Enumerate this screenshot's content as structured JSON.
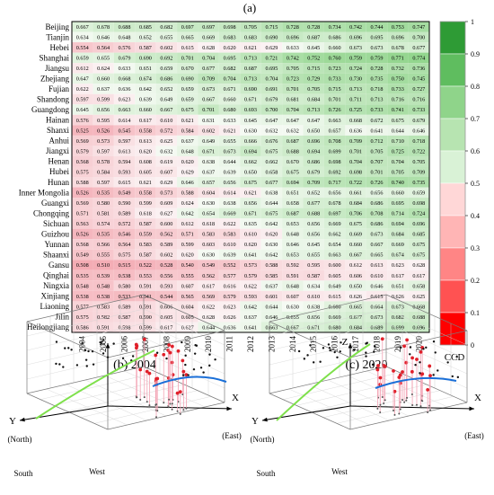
{
  "panels": {
    "a_label": "(a)",
    "b_label": "(b) 2004",
    "c_label": "(c) 2020"
  },
  "chart_data": [
    {
      "type": "heatmap",
      "title": "(a)",
      "years": [
        "2004",
        "2005",
        "2006",
        "2007",
        "2008",
        "2009",
        "2010",
        "2011",
        "2012",
        "2013",
        "2014",
        "2015",
        "2016",
        "2017",
        "2018",
        "2019",
        "2020"
      ],
      "provinces": [
        "Beijing",
        "Tianjin",
        "Hebei",
        "Shanghai",
        "Jiangsu",
        "Zhejiang",
        "Fujian",
        "Shandong",
        "Guangdong",
        "Hainan",
        "Shanxi",
        "Anhui",
        "Jiangxi",
        "Henan",
        "Hubei",
        "Hunan",
        "Inner Mongolia",
        "Guangxi",
        "Chongqing",
        "Sichuan",
        "Guizhou",
        "Yunnan",
        "Shaanxi",
        "Gansu",
        "Qinghai",
        "Ningxia",
        "Xinjiang",
        "Liaoning",
        "Jilin",
        "Heilongjiang"
      ],
      "values": [
        [
          0.667,
          0.678,
          0.688,
          0.685,
          0.682,
          0.697,
          0.697,
          0.698,
          0.705,
          0.715,
          0.728,
          0.728,
          0.734,
          0.742,
          0.744,
          0.753,
          0.747
        ],
        [
          0.634,
          0.646,
          0.648,
          0.652,
          0.655,
          0.665,
          0.669,
          0.683,
          0.683,
          0.69,
          0.696,
          0.687,
          0.686,
          0.696,
          0.695,
          0.696,
          0.7
        ],
        [
          0.554,
          0.564,
          0.576,
          0.587,
          0.602,
          0.615,
          0.628,
          0.62,
          0.621,
          0.629,
          0.633,
          0.645,
          0.66,
          0.673,
          0.673,
          0.678,
          0.677
        ],
        [
          0.659,
          0.655,
          0.679,
          0.69,
          0.692,
          0.701,
          0.704,
          0.695,
          0.713,
          0.721,
          0.742,
          0.752,
          0.76,
          0.759,
          0.759,
          0.771,
          0.774
        ],
        [
          0.612,
          0.624,
          0.633,
          0.651,
          0.659,
          0.67,
          0.677,
          0.682,
          0.687,
          0.695,
          0.705,
          0.715,
          0.723,
          0.724,
          0.728,
          0.732,
          0.736
        ],
        [
          0.647,
          0.66,
          0.668,
          0.674,
          0.686,
          0.69,
          0.709,
          0.704,
          0.713,
          0.704,
          0.723,
          0.729,
          0.733,
          0.73,
          0.735,
          0.75,
          0.745
        ],
        [
          0.622,
          0.637,
          0.636,
          0.642,
          0.652,
          0.659,
          0.673,
          0.671,
          0.69,
          0.691,
          0.701,
          0.705,
          0.715,
          0.713,
          0.718,
          0.733,
          0.727
        ],
        [
          0.597,
          0.599,
          0.623,
          0.639,
          0.649,
          0.659,
          0.667,
          0.66,
          0.671,
          0.679,
          0.681,
          0.684,
          0.701,
          0.711,
          0.713,
          0.716,
          0.716
        ],
        [
          0.645,
          0.656,
          0.663,
          0.66,
          0.667,
          0.675,
          0.701,
          0.68,
          0.693,
          0.7,
          0.704,
          0.713,
          0.726,
          0.725,
          0.733,
          0.741,
          0.733
        ],
        [
          0.576,
          0.595,
          0.614,
          0.617,
          0.61,
          0.621,
          0.631,
          0.633,
          0.645,
          0.647,
          0.647,
          0.647,
          0.663,
          0.668,
          0.672,
          0.675,
          0.679
        ],
        [
          0.525,
          0.526,
          0.545,
          0.558,
          0.572,
          0.584,
          0.602,
          0.621,
          0.63,
          0.632,
          0.632,
          0.65,
          0.657,
          0.636,
          0.641,
          0.644,
          0.646
        ],
        [
          0.569,
          0.573,
          0.597,
          0.613,
          0.625,
          0.637,
          0.649,
          0.655,
          0.666,
          0.676,
          0.687,
          0.696,
          0.708,
          0.709,
          0.712,
          0.71,
          0.718
        ],
        [
          0.579,
          0.597,
          0.613,
          0.62,
          0.632,
          0.648,
          0.671,
          0.673,
          0.694,
          0.675,
          0.688,
          0.694,
          0.699,
          0.701,
          0.705,
          0.725,
          0.722
        ],
        [
          0.568,
          0.578,
          0.594,
          0.608,
          0.619,
          0.62,
          0.638,
          0.644,
          0.662,
          0.662,
          0.67,
          0.686,
          0.698,
          0.704,
          0.707,
          0.704,
          0.705
        ],
        [
          0.575,
          0.584,
          0.593,
          0.605,
          0.607,
          0.629,
          0.637,
          0.639,
          0.65,
          0.658,
          0.675,
          0.679,
          0.692,
          0.698,
          0.701,
          0.705,
          0.709
        ],
        [
          0.588,
          0.597,
          0.615,
          0.621,
          0.629,
          0.646,
          0.657,
          0.656,
          0.675,
          0.677,
          0.694,
          0.709,
          0.717,
          0.722,
          0.726,
          0.74,
          0.735
        ],
        [
          0.526,
          0.535,
          0.549,
          0.558,
          0.573,
          0.588,
          0.604,
          0.614,
          0.621,
          0.638,
          0.651,
          0.652,
          0.656,
          0.661,
          0.656,
          0.66,
          0.659
        ],
        [
          0.569,
          0.58,
          0.59,
          0.599,
          0.609,
          0.624,
          0.63,
          0.638,
          0.656,
          0.644,
          0.658,
          0.677,
          0.678,
          0.684,
          0.686,
          0.695,
          0.698
        ],
        [
          0.571,
          0.581,
          0.589,
          0.618,
          0.627,
          0.642,
          0.654,
          0.669,
          0.671,
          0.675,
          0.687,
          0.688,
          0.697,
          0.706,
          0.708,
          0.714,
          0.724
        ],
        [
          0.563,
          0.574,
          0.572,
          0.587,
          0.6,
          0.612,
          0.618,
          0.622,
          0.635,
          0.642,
          0.653,
          0.656,
          0.669,
          0.675,
          0.686,
          0.694,
          0.696
        ],
        [
          0.526,
          0.535,
          0.546,
          0.559,
          0.562,
          0.571,
          0.583,
          0.583,
          0.61,
          0.62,
          0.648,
          0.656,
          0.662,
          0.669,
          0.673,
          0.684,
          0.685
        ],
        [
          0.568,
          0.566,
          0.564,
          0.583,
          0.589,
          0.599,
          0.603,
          0.61,
          0.62,
          0.63,
          0.646,
          0.645,
          0.654,
          0.66,
          0.667,
          0.669,
          0.675
        ],
        [
          0.549,
          0.555,
          0.575,
          0.587,
          0.602,
          0.62,
          0.63,
          0.639,
          0.641,
          0.642,
          0.653,
          0.655,
          0.663,
          0.667,
          0.665,
          0.674,
          0.675
        ],
        [
          0.508,
          0.51,
          0.515,
          0.522,
          0.528,
          0.54,
          0.549,
          0.552,
          0.573,
          0.588,
          0.592,
          0.595,
          0.6,
          0.612,
          0.613,
          0.623,
          0.628
        ],
        [
          0.535,
          0.539,
          0.538,
          0.553,
          0.556,
          0.555,
          0.562,
          0.577,
          0.579,
          0.585,
          0.591,
          0.587,
          0.605,
          0.606,
          0.61,
          0.617,
          0.617
        ],
        [
          0.548,
          0.548,
          0.58,
          0.591,
          0.593,
          0.607,
          0.617,
          0.616,
          0.622,
          0.637,
          0.648,
          0.634,
          0.649,
          0.65,
          0.646,
          0.651,
          0.658
        ],
        [
          0.538,
          0.538,
          0.533,
          0.541,
          0.544,
          0.565,
          0.569,
          0.579,
          0.593,
          0.601,
          0.607,
          0.61,
          0.615,
          0.626,
          0.615,
          0.626,
          0.625
        ],
        [
          0.577,
          0.583,
          0.589,
          0.591,
          0.606,
          0.604,
          0.622,
          0.623,
          0.642,
          0.644,
          0.63,
          0.638,
          0.66,
          0.665,
          0.664,
          0.673,
          0.668
        ],
        [
          0.575,
          0.582,
          0.587,
          0.59,
          0.605,
          0.605,
          0.628,
          0.626,
          0.637,
          0.646,
          0.655,
          0.656,
          0.669,
          0.677,
          0.673,
          0.682,
          0.688
        ],
        [
          0.586,
          0.591,
          0.598,
          0.599,
          0.617,
          0.627,
          0.644,
          0.636,
          0.641,
          0.663,
          0.667,
          0.671,
          0.68,
          0.684,
          0.689,
          0.699,
          0.696
        ]
      ],
      "colorbar": {
        "label": "CCD",
        "ticks": [
          "0",
          "0.1",
          "0.2",
          "0.3",
          "0.4",
          "0.5",
          "0.6",
          "0.7",
          "0.8",
          "0.9",
          "1"
        ]
      }
    },
    {
      "type": "scatter",
      "subtype": "3d-trend",
      "title": "(b) 2004",
      "axes": {
        "x": "X",
        "x_dir": "(East)",
        "y": "Y",
        "y_dir": "(North)",
        "z": "Z",
        "south": "South",
        "west": "West"
      }
    },
    {
      "type": "scatter",
      "subtype": "3d-trend",
      "title": "(c) 2020",
      "axes": {
        "x": "X",
        "x_dir": "(East)",
        "y": "Y",
        "y_dir": "(North)",
        "z": "Z",
        "south": "South",
        "west": "West"
      }
    }
  ],
  "colors": {
    "low": "#ff0000",
    "mid": "#f8eef0",
    "high": "#2e9b35",
    "green_curve": "#7ee04b",
    "blue_curve": "#1a6fd8",
    "points_red": "#e0202a",
    "points_black": "#111111"
  }
}
